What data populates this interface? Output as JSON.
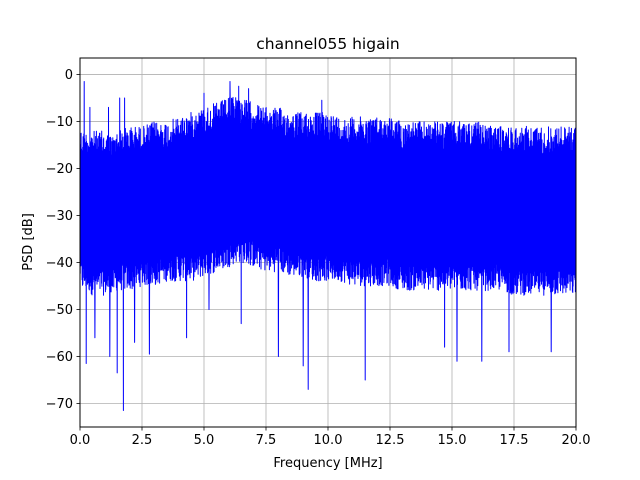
{
  "chart_data": {
    "type": "line",
    "title": "channel055 higain",
    "xlabel": "Frequency [MHz]",
    "ylabel": "PSD [dB]",
    "xlim": [
      0,
      20
    ],
    "ylim": [
      -75,
      3.5
    ],
    "xticks": [
      0.0,
      2.5,
      5.0,
      7.5,
      10.0,
      12.5,
      15.0,
      17.5,
      20.0
    ],
    "xtick_labels": [
      "0.0",
      "2.5",
      "5.0",
      "7.5",
      "10.0",
      "12.5",
      "15.0",
      "17.5",
      "20.0"
    ],
    "yticks": [
      0,
      -10,
      -20,
      -30,
      -40,
      -50,
      -60,
      -70
    ],
    "ytick_labels": [
      "0",
      "−10",
      "−20",
      "−30",
      "−40",
      "−50",
      "−60",
      "−70"
    ],
    "grid": true,
    "line_color": "#0000ff",
    "envelope": {
      "x": [
        0.0,
        0.1,
        0.2,
        0.3,
        0.5,
        0.7,
        1.0,
        1.3,
        1.5,
        2.0,
        2.5,
        3.0,
        3.5,
        4.0,
        4.5,
        5.0,
        5.5,
        6.0,
        6.3,
        6.5,
        7.0,
        7.5,
        8.0,
        8.5,
        9.0,
        9.5,
        10.0,
        10.5,
        11.0,
        11.5,
        12.0,
        12.5,
        13.0,
        13.5,
        14.0,
        14.5,
        15.0,
        15.5,
        16.0,
        16.5,
        17.0,
        17.5,
        18.0,
        18.5,
        19.0,
        19.5,
        20.0
      ],
      "upper": [
        -11,
        -12,
        -12,
        -12,
        -12,
        -12,
        -12,
        -13,
        -12,
        -11,
        -11,
        -10,
        -10,
        -9,
        -8,
        -7,
        -6,
        -5,
        -4,
        -5,
        -6,
        -7,
        -7,
        -8,
        -8,
        -8,
        -8,
        -9,
        -9,
        -9,
        -9,
        -9,
        -10,
        -10,
        -10,
        -10,
        -10,
        -10,
        -10,
        -11,
        -11,
        -11,
        -11,
        -11,
        -11,
        -11,
        -11
      ],
      "lower": [
        -44,
        -46,
        -46,
        -46,
        -47,
        -47,
        -47,
        -47,
        -46,
        -46,
        -45,
        -45,
        -44,
        -44,
        -44,
        -43,
        -42,
        -41,
        -40,
        -40,
        -41,
        -42,
        -42,
        -43,
        -43,
        -44,
        -44,
        -44,
        -45,
        -45,
        -45,
        -45,
        -46,
        -46,
        -46,
        -46,
        -46,
        -46,
        -46,
        -46,
        -46,
        -47,
        -47,
        -47,
        -47,
        -47,
        -47
      ]
    },
    "peaks": [
      {
        "x": 0.17,
        "y": -1.5
      },
      {
        "x": 0.4,
        "y": -7
      },
      {
        "x": 1.15,
        "y": -7
      },
      {
        "x": 1.6,
        "y": -5
      },
      {
        "x": 1.8,
        "y": -5
      },
      {
        "x": 5.0,
        "y": -4
      },
      {
        "x": 6.05,
        "y": -1.5
      },
      {
        "x": 6.4,
        "y": -2.5
      },
      {
        "x": 6.8,
        "y": -3
      },
      {
        "x": 9.75,
        "y": -5.5
      },
      {
        "x": 11.5,
        "y": -6.5
      }
    ],
    "dips": [
      {
        "x": 0.25,
        "y": -61.5
      },
      {
        "x": 0.6,
        "y": -56
      },
      {
        "x": 1.2,
        "y": -60
      },
      {
        "x": 1.5,
        "y": -63.5
      },
      {
        "x": 1.75,
        "y": -71.5
      },
      {
        "x": 2.2,
        "y": -57
      },
      {
        "x": 2.8,
        "y": -59.5
      },
      {
        "x": 4.3,
        "y": -56
      },
      {
        "x": 5.2,
        "y": -50
      },
      {
        "x": 6.5,
        "y": -53
      },
      {
        "x": 8.0,
        "y": -60
      },
      {
        "x": 9.0,
        "y": -62
      },
      {
        "x": 9.2,
        "y": -67
      },
      {
        "x": 11.5,
        "y": -65
      },
      {
        "x": 14.7,
        "y": -58
      },
      {
        "x": 15.2,
        "y": -61
      },
      {
        "x": 16.2,
        "y": -61
      },
      {
        "x": 17.3,
        "y": -59
      },
      {
        "x": 19.0,
        "y": -59
      }
    ]
  }
}
